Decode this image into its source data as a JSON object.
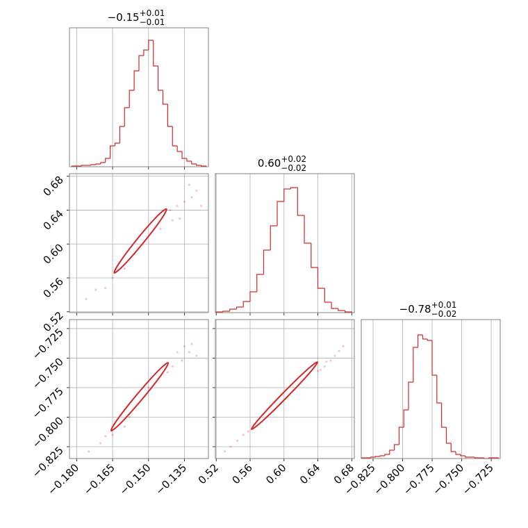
{
  "chart_data": {
    "type": "corner",
    "color": "#d62728",
    "params": [
      {
        "lim": [
          -0.183,
          -0.125
        ],
        "ticks": [
          {
            "value": -0.18,
            "label": "−0.180"
          },
          {
            "value": -0.165,
            "label": "−0.165"
          },
          {
            "value": -0.15,
            "label": "−0.150"
          },
          {
            "value": -0.135,
            "label": "−0.135"
          }
        ],
        "title": {
          "main": "−0.15",
          "upper": "+0.01",
          "lower": "−0.01"
        },
        "hist": {
          "ylim": [
            0,
            200
          ],
          "bins": [
            -0.182,
            -0.18,
            -0.178,
            -0.176,
            -0.174,
            -0.172,
            -0.17,
            -0.168,
            -0.166,
            -0.164,
            -0.162,
            -0.16,
            -0.158,
            -0.156,
            -0.154,
            -0.152,
            -0.15,
            -0.148,
            -0.146,
            -0.144,
            -0.142,
            -0.14,
            -0.138,
            -0.136,
            -0.134,
            -0.132,
            -0.13,
            -0.128,
            -0.126
          ],
          "counts": [
            1,
            1,
            2,
            2,
            3,
            4,
            6,
            12,
            30,
            34,
            58,
            85,
            110,
            138,
            160,
            168,
            182,
            145,
            110,
            90,
            58,
            30,
            22,
            12,
            8,
            4,
            2,
            1
          ]
        }
      },
      {
        "lim": [
          0.519,
          0.683
        ],
        "ticks": [
          0.52,
          0.56,
          {
            "value": 0.6,
            "label": "0.60"
          },
          0.64,
          0.68
        ],
        "title": {
          "main": "0.60",
          "upper": "+0.02",
          "lower": "−0.02"
        },
        "hist": {
          "ylim": [
            0,
            200
          ],
          "bins": [
            0.52,
            0.528,
            0.536,
            0.544,
            0.552,
            0.56,
            0.568,
            0.576,
            0.584,
            0.592,
            0.6,
            0.608,
            0.616,
            0.624,
            0.632,
            0.64,
            0.648,
            0.656,
            0.664,
            0.672,
            0.68
          ],
          "counts": [
            1,
            2,
            5,
            8,
            16,
            30,
            55,
            90,
            125,
            160,
            178,
            180,
            140,
            100,
            65,
            35,
            15,
            6,
            3,
            1
          ]
        }
      },
      {
        "lim": [
          -0.835,
          -0.7174
        ],
        "ticks": [
          {
            "value": -0.825,
            "label": "−0.825"
          },
          {
            "value": -0.8,
            "label": "−0.800"
          },
          {
            "value": -0.775,
            "label": "−0.775"
          },
          {
            "value": -0.75,
            "label": "−0.750"
          },
          {
            "value": -0.725,
            "label": "−0.725"
          }
        ],
        "title": {
          "main": "−0.78",
          "upper": "+0.01",
          "lower": "−0.02"
        },
        "hist": {
          "ylim": [
            0,
            200
          ],
          "bins": [
            -0.835,
            -0.831,
            -0.827,
            -0.823,
            -0.819,
            -0.815,
            -0.811,
            -0.807,
            -0.803,
            -0.799,
            -0.795,
            -0.791,
            -0.787,
            -0.783,
            -0.779,
            -0.775,
            -0.771,
            -0.767,
            -0.763,
            -0.759,
            -0.755,
            -0.751,
            -0.747,
            -0.743,
            -0.739,
            -0.735,
            -0.731,
            -0.727,
            -0.723,
            -0.719
          ],
          "counts": [
            1,
            1,
            2,
            3,
            4,
            6,
            12,
            20,
            45,
            70,
            110,
            160,
            178,
            172,
            170,
            120,
            80,
            45,
            22,
            10,
            6,
            4,
            2,
            2,
            1,
            1,
            0,
            1,
            1
          ]
        }
      }
    ],
    "pairs": [
      {
        "x_param": 0,
        "y_param": 1,
        "points": {
          "x": [
            -0.176,
            -0.172,
            -0.168,
            -0.16,
            -0.156,
            -0.145,
            -0.14,
            -0.138,
            -0.135,
            -0.132,
            -0.13,
            -0.137,
            -0.133,
            -0.141,
            -0.165,
            -0.128
          ],
          "y": [
            0.535,
            0.546,
            0.548,
            0.571,
            0.588,
            0.618,
            0.628,
            0.645,
            0.65,
            0.655,
            0.663,
            0.63,
            0.67,
            0.64,
            0.56,
            0.645
          ]
        },
        "contour": {
          "x": [
            -0.1425,
            -0.1449,
            -0.1523,
            -0.1603,
            -0.1643,
            -0.1619,
            -0.1546,
            -0.1466
          ],
          "y": [
            0.6414,
            0.6284,
            0.601,
            0.5751,
            0.5659,
            0.5789,
            0.6063,
            0.6322
          ]
        }
      },
      {
        "x_param": 0,
        "y_param": 2,
        "points": {
          "x": [
            -0.175,
            -0.17,
            -0.165,
            -0.158,
            -0.15,
            -0.14,
            -0.138,
            -0.135,
            -0.132,
            -0.13,
            -0.136,
            -0.142,
            -0.133,
            -0.168,
            -0.16
          ],
          "y": [
            -0.829,
            -0.822,
            -0.815,
            -0.8,
            -0.775,
            -0.757,
            -0.745,
            -0.74,
            -0.738,
            -0.748,
            -0.752,
            -0.762,
            -0.745,
            -0.816,
            -0.808
          ]
        },
        "contour": {
          "x": [
            -0.1418,
            -0.1445,
            -0.1526,
            -0.1613,
            -0.1656,
            -0.1629,
            -0.1548,
            -0.1461
          ],
          "y": [
            -0.7539,
            -0.7637,
            -0.7846,
            -0.8044,
            -0.8115,
            -0.8017,
            -0.7808,
            -0.761
          ]
        }
      },
      {
        "x_param": 1,
        "y_param": 2,
        "points": {
          "x": [
            0.53,
            0.537,
            0.545,
            0.552,
            0.655,
            0.66,
            0.665,
            0.67,
            0.648,
            0.643,
            0.65,
            0.558,
            0.64
          ],
          "y": [
            -0.829,
            -0.825,
            -0.82,
            -0.815,
            -0.752,
            -0.748,
            -0.744,
            -0.74,
            -0.757,
            -0.76,
            -0.753,
            -0.812,
            -0.761
          ]
        },
        "contour": {
          "x": [
            0.6395,
            0.6299,
            0.603,
            0.5748,
            0.5616,
            0.5713,
            0.5982,
            0.6264
          ],
          "y": [
            -0.7533,
            -0.7628,
            -0.7834,
            -0.8031,
            -0.8103,
            -0.8008,
            -0.7801,
            -0.7604
          ]
        }
      }
    ]
  }
}
